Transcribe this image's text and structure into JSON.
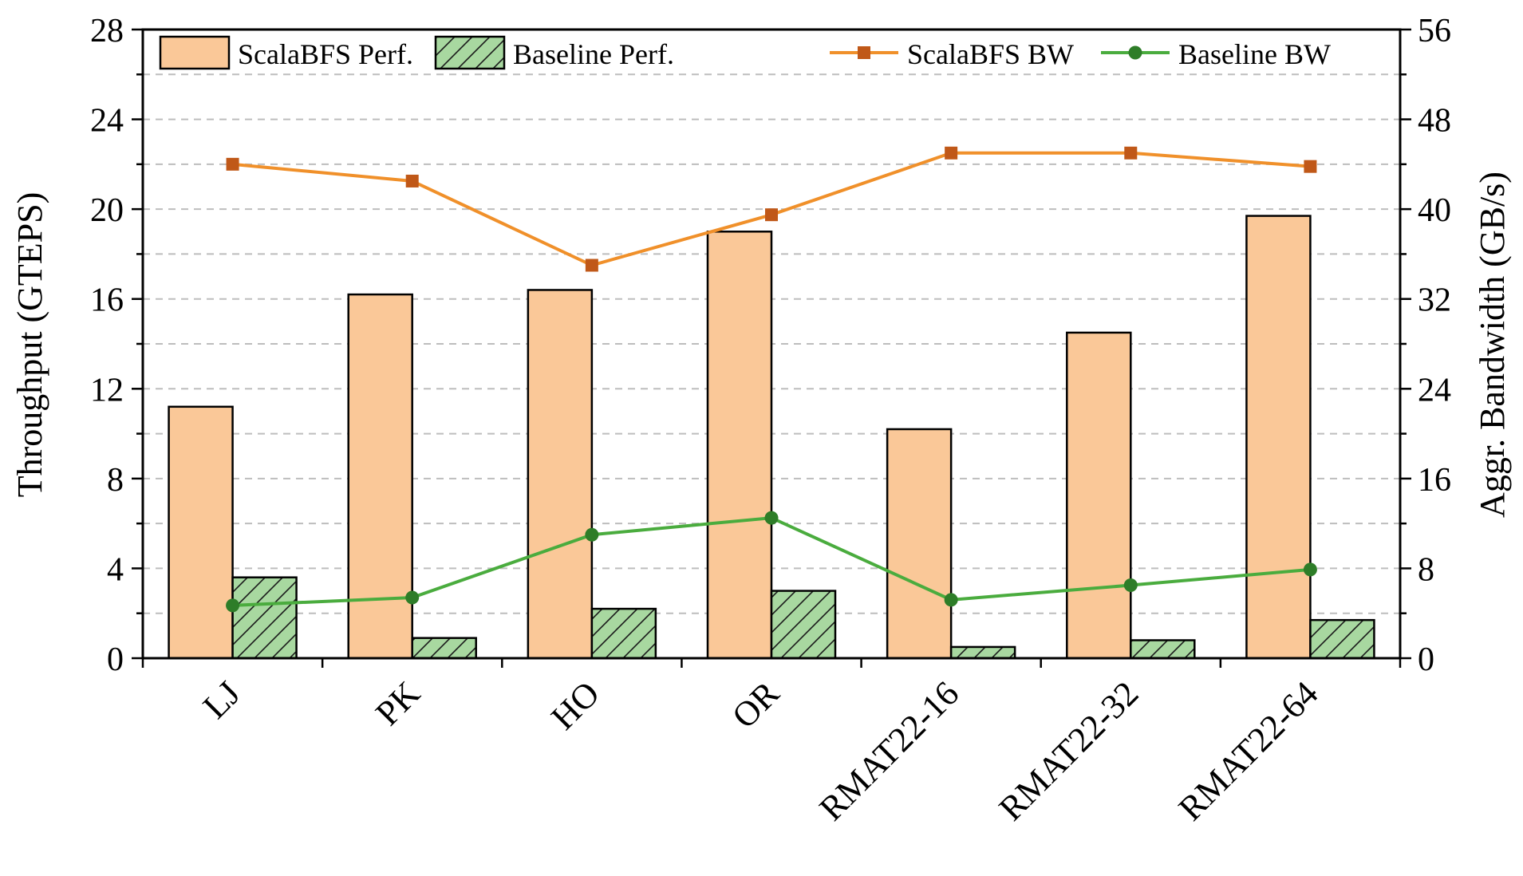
{
  "chart_data": {
    "type": "bar",
    "categories": [
      "LJ",
      "PK",
      "HO",
      "OR",
      "RMAT22-16",
      "RMAT22-32",
      "RMAT22-64"
    ],
    "ylabel": "Throughput (GTEPS)",
    "y2label": "Aggr. Bandwidth (GB/s)",
    "ylim": [
      0,
      28
    ],
    "y2lim": [
      0,
      56
    ],
    "yticks": [
      0,
      4,
      8,
      12,
      16,
      20,
      24,
      28
    ],
    "y2ticks": [
      0,
      8,
      16,
      24,
      32,
      40,
      48,
      56
    ],
    "grid": "horizontal dashed",
    "legend_position": "top",
    "bar_series": [
      {
        "name": "ScalaBFS Perf.",
        "axis": "left",
        "color": "#fac898",
        "values": [
          11.2,
          16.2,
          16.4,
          19.0,
          10.2,
          14.5,
          19.7
        ]
      },
      {
        "name": "Baseline Perf.",
        "axis": "left",
        "color": "#a8d8a0",
        "pattern": "hatch",
        "values": [
          3.6,
          0.9,
          2.2,
          3.0,
          0.5,
          0.8,
          1.7
        ]
      }
    ],
    "line_series": [
      {
        "name": "ScalaBFS BW",
        "axis": "right",
        "color": "#f0902a",
        "marker_color": "#c05818",
        "marker": "square",
        "values": [
          44.0,
          42.5,
          35.0,
          39.5,
          45.0,
          45.0,
          43.8
        ]
      },
      {
        "name": "Baseline BW",
        "axis": "right",
        "color": "#4aac3e",
        "marker_color": "#2e7d28",
        "marker": "circle",
        "values": [
          4.7,
          5.4,
          11.0,
          12.5,
          5.2,
          6.5,
          7.9
        ]
      }
    ]
  }
}
